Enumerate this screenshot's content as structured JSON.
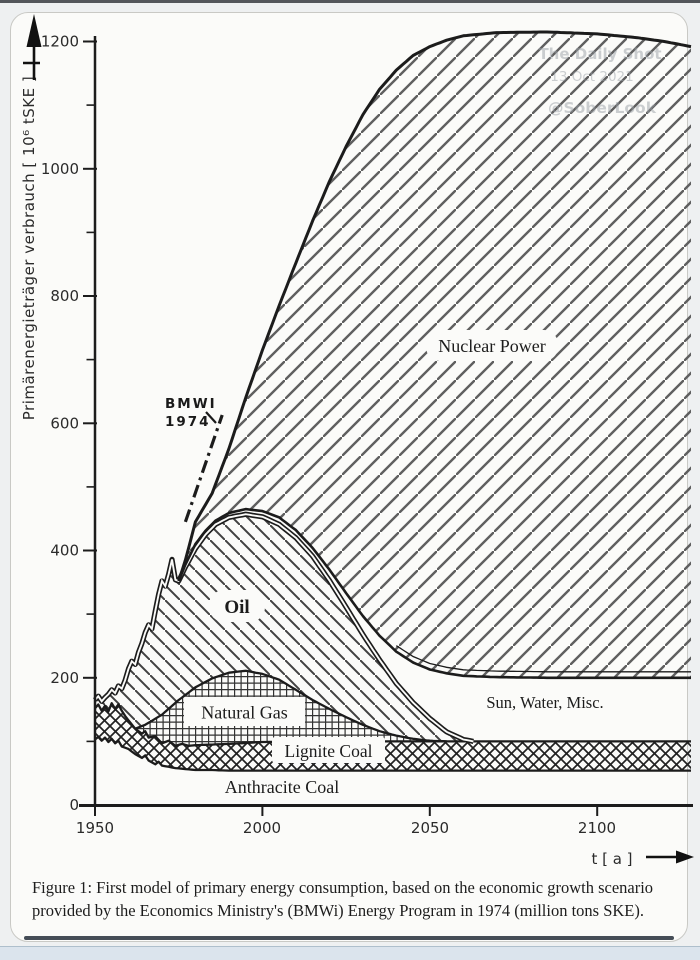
{
  "watermark": {
    "line1": "The Daily Shot",
    "line2": "13 Oct 2021",
    "line3": "@SoberLook"
  },
  "caption": "Figure 1: First model of primary energy consumption, based on the economic growth scenario provided by the Economics Ministry's (BMWi) Energy Program in 1974 (million tons SKE).",
  "chart_data": {
    "type": "area",
    "stacked": true,
    "title": "",
    "xlabel": "t [ a ]",
    "ylabel": "Primärenergieträger verbrauch [ 10⁶ tSKE ]",
    "xlim": [
      1950,
      2128
    ],
    "ylim": [
      0,
      1200
    ],
    "x_ticks": [
      1950,
      2000,
      2050,
      2100
    ],
    "x_tick_labels": [
      "1950",
      "2000",
      "2050",
      "2100"
    ],
    "y_ticks_major": [
      0,
      200,
      400,
      600,
      800,
      1000,
      1200
    ],
    "y_tick_labels": [
      "0",
      "200",
      "400",
      "600",
      "800",
      "1000",
      "1200"
    ],
    "y_ticks_minor": [
      100,
      300,
      500,
      700,
      900,
      1100
    ],
    "unit": "10^6 t SKE",
    "labels": [
      {
        "id": "nuclear",
        "text": "Nuclear Power"
      },
      {
        "id": "oil",
        "text": "Oil"
      },
      {
        "id": "gas",
        "text": "Natural Gas"
      },
      {
        "id": "lignite",
        "text": "Lignite Coal"
      },
      {
        "id": "anthracite",
        "text": "Anthracite Coal"
      },
      {
        "id": "sunwater",
        "text": "Sun, Water, Misc."
      }
    ],
    "annotation": {
      "line1": "BMWI",
      "line2": "1974",
      "dashdot_line": {
        "x1_year": 1977,
        "y1_value": 445,
        "x2_year": 1988,
        "y2_value": 613
      }
    },
    "series": {
      "anthracite_top": [
        [
          1950,
          103
        ],
        [
          1951,
          107
        ],
        [
          1952,
          101
        ],
        [
          1953,
          106
        ],
        [
          1954,
          99
        ],
        [
          1955,
          104
        ],
        [
          1956,
          97
        ],
        [
          1957,
          101
        ],
        [
          1958,
          92
        ],
        [
          1960,
          88
        ],
        [
          1962,
          80
        ],
        [
          1964,
          74
        ],
        [
          1965,
          78
        ],
        [
          1966,
          70
        ],
        [
          1968,
          64
        ],
        [
          1969,
          68
        ],
        [
          1970,
          62
        ],
        [
          1972,
          60
        ],
        [
          1974,
          58
        ],
        [
          1976,
          57
        ],
        [
          1978,
          56
        ],
        [
          1980,
          55
        ],
        [
          1985,
          55
        ],
        [
          1990,
          54
        ],
        [
          2000,
          54
        ],
        [
          2128,
          54
        ]
      ],
      "lignite_top": [
        [
          1950,
          152
        ],
        [
          1951,
          158
        ],
        [
          1952,
          148
        ],
        [
          1953,
          156
        ],
        [
          1954,
          147
        ],
        [
          1955,
          160
        ],
        [
          1956,
          151
        ],
        [
          1957,
          158
        ],
        [
          1958,
          148
        ],
        [
          1959,
          140
        ],
        [
          1960,
          133
        ],
        [
          1962,
          120
        ],
        [
          1964,
          112
        ],
        [
          1965,
          116
        ],
        [
          1966,
          106
        ],
        [
          1968,
          108
        ],
        [
          1970,
          97
        ],
        [
          1972,
          101
        ],
        [
          1974,
          93
        ],
        [
          1976,
          96
        ],
        [
          1978,
          93
        ],
        [
          1980,
          94
        ],
        [
          1990,
          96
        ],
        [
          2000,
          99
        ],
        [
          2020,
          100
        ],
        [
          2050,
          100
        ],
        [
          2128,
          100
        ]
      ],
      "gas_top": [
        [
          1962,
          120
        ],
        [
          1965,
          126
        ],
        [
          1970,
          142
        ],
        [
          1975,
          165
        ],
        [
          1980,
          185
        ],
        [
          1985,
          199
        ],
        [
          1990,
          208
        ],
        [
          1995,
          211
        ],
        [
          2000,
          206
        ],
        [
          2005,
          197
        ],
        [
          2010,
          181
        ],
        [
          2015,
          165
        ],
        [
          2020,
          151
        ],
        [
          2025,
          138
        ],
        [
          2030,
          126
        ],
        [
          2035,
          116
        ],
        [
          2040,
          109
        ],
        [
          2045,
          104
        ],
        [
          2050,
          101
        ],
        [
          2055,
          100
        ]
      ],
      "oil_top": [
        [
          1950,
          165
        ],
        [
          1951,
          171
        ],
        [
          1952,
          163
        ],
        [
          1953,
          169
        ],
        [
          1954,
          174
        ],
        [
          1955,
          181
        ],
        [
          1956,
          176
        ],
        [
          1957,
          187
        ],
        [
          1958,
          183
        ],
        [
          1959,
          196
        ],
        [
          1960,
          214
        ],
        [
          1961,
          226
        ],
        [
          1962,
          221
        ],
        [
          1963,
          240
        ],
        [
          1964,
          254
        ],
        [
          1965,
          271
        ],
        [
          1966,
          283
        ],
        [
          1967,
          277
        ],
        [
          1968,
          305
        ],
        [
          1969,
          331
        ],
        [
          1970,
          352
        ],
        [
          1971,
          344
        ],
        [
          1972,
          363
        ],
        [
          1973,
          386
        ],
        [
          1974,
          354
        ],
        [
          1975,
          352
        ],
        [
          1977,
          374
        ],
        [
          1980,
          403
        ],
        [
          1983,
          425
        ],
        [
          1986,
          441
        ],
        [
          1990,
          452
        ],
        [
          1995,
          457
        ],
        [
          2000,
          453
        ],
        [
          2005,
          441
        ],
        [
          2010,
          420
        ],
        [
          2015,
          391
        ],
        [
          2020,
          353
        ],
        [
          2025,
          311
        ],
        [
          2030,
          268
        ],
        [
          2035,
          228
        ],
        [
          2040,
          191
        ],
        [
          2045,
          161
        ],
        [
          2050,
          136
        ],
        [
          2055,
          115
        ],
        [
          2060,
          103
        ],
        [
          2063,
          100
        ]
      ],
      "nuclear_bottom": [
        [
          1975,
          352
        ],
        [
          1977,
          378
        ],
        [
          1980,
          410
        ],
        [
          1983,
          431
        ],
        [
          1986,
          447
        ],
        [
          1990,
          459
        ],
        [
          1995,
          465
        ],
        [
          2000,
          462
        ],
        [
          2005,
          452
        ],
        [
          2010,
          432
        ],
        [
          2015,
          404
        ],
        [
          2020,
          370
        ],
        [
          2025,
          333
        ],
        [
          2030,
          297
        ],
        [
          2035,
          266
        ],
        [
          2040,
          241
        ],
        [
          2045,
          224
        ],
        [
          2050,
          213
        ],
        [
          2055,
          207
        ],
        [
          2060,
          203
        ],
        [
          2070,
          201
        ],
        [
          2085,
          200
        ],
        [
          2100,
          200
        ],
        [
          2128,
          200
        ]
      ],
      "nuclear_top": [
        [
          1975,
          352
        ],
        [
          1977,
          385
        ],
        [
          1980,
          445
        ],
        [
          1985,
          490
        ],
        [
          1990,
          560
        ],
        [
          1995,
          640
        ],
        [
          2000,
          715
        ],
        [
          2005,
          785
        ],
        [
          2010,
          852
        ],
        [
          2015,
          918
        ],
        [
          2020,
          980
        ],
        [
          2025,
          1035
        ],
        [
          2030,
          1085
        ],
        [
          2035,
          1125
        ],
        [
          2040,
          1155
        ],
        [
          2045,
          1178
        ],
        [
          2050,
          1192
        ],
        [
          2055,
          1202
        ],
        [
          2060,
          1209
        ],
        [
          2070,
          1214
        ],
        [
          2085,
          1215
        ],
        [
          2100,
          1212
        ],
        [
          2112,
          1206
        ],
        [
          2120,
          1200
        ],
        [
          2128,
          1192
        ]
      ]
    },
    "regions": [
      {
        "id": "lignite",
        "bottom": [
          "anthracite_top"
        ],
        "top": [
          "lignite_top"
        ],
        "from": 1950,
        "to": 2128,
        "pattern": "pat-lignite"
      },
      {
        "id": "gas",
        "bottom": [
          "lignite_top"
        ],
        "top": [
          "gas_top"
        ],
        "from": 1962,
        "to": 2055,
        "pattern": "pat-gas"
      },
      {
        "id": "oil",
        "bottom": [
          "gas_top",
          "lignite_top"
        ],
        "top": [
          "oil_top"
        ],
        "from": 1950,
        "to": 2063,
        "pattern": "pat-oil"
      },
      {
        "id": "nuclear",
        "bottom": [
          "nuclear_bottom"
        ],
        "top": [
          "nuclear_top"
        ],
        "from": 1975,
        "to": 2128,
        "pattern": "pat-nuclear"
      }
    ],
    "outlines": [
      {
        "series": "anthracite_top",
        "from": 1950,
        "to": 2128,
        "width": 2.3
      },
      {
        "series": "lignite_top",
        "from": 1950,
        "to": 2128,
        "width": 2.3
      },
      {
        "series": "gas_top",
        "from": 1962,
        "to": 2055,
        "width": 2.3
      },
      {
        "series": "oil_top",
        "from": 1950,
        "to": 2063,
        "width": 5.2,
        "double": true
      },
      {
        "series": "nuclear_bottom",
        "from": 1975,
        "to": 2128,
        "width": 2.6,
        "companion_from": 2040
      },
      {
        "series": "nuclear_top",
        "from": 1975,
        "to": 2128,
        "width": 3.0
      }
    ],
    "colors": {
      "ink": "#1c1c1c",
      "hatch_nuclear": "#5f5f5f",
      "hatch_oil": "#414141",
      "hatch_gas": "#333333",
      "hatch_lignite": "#222222",
      "paper": "#fbfbf9"
    }
  }
}
